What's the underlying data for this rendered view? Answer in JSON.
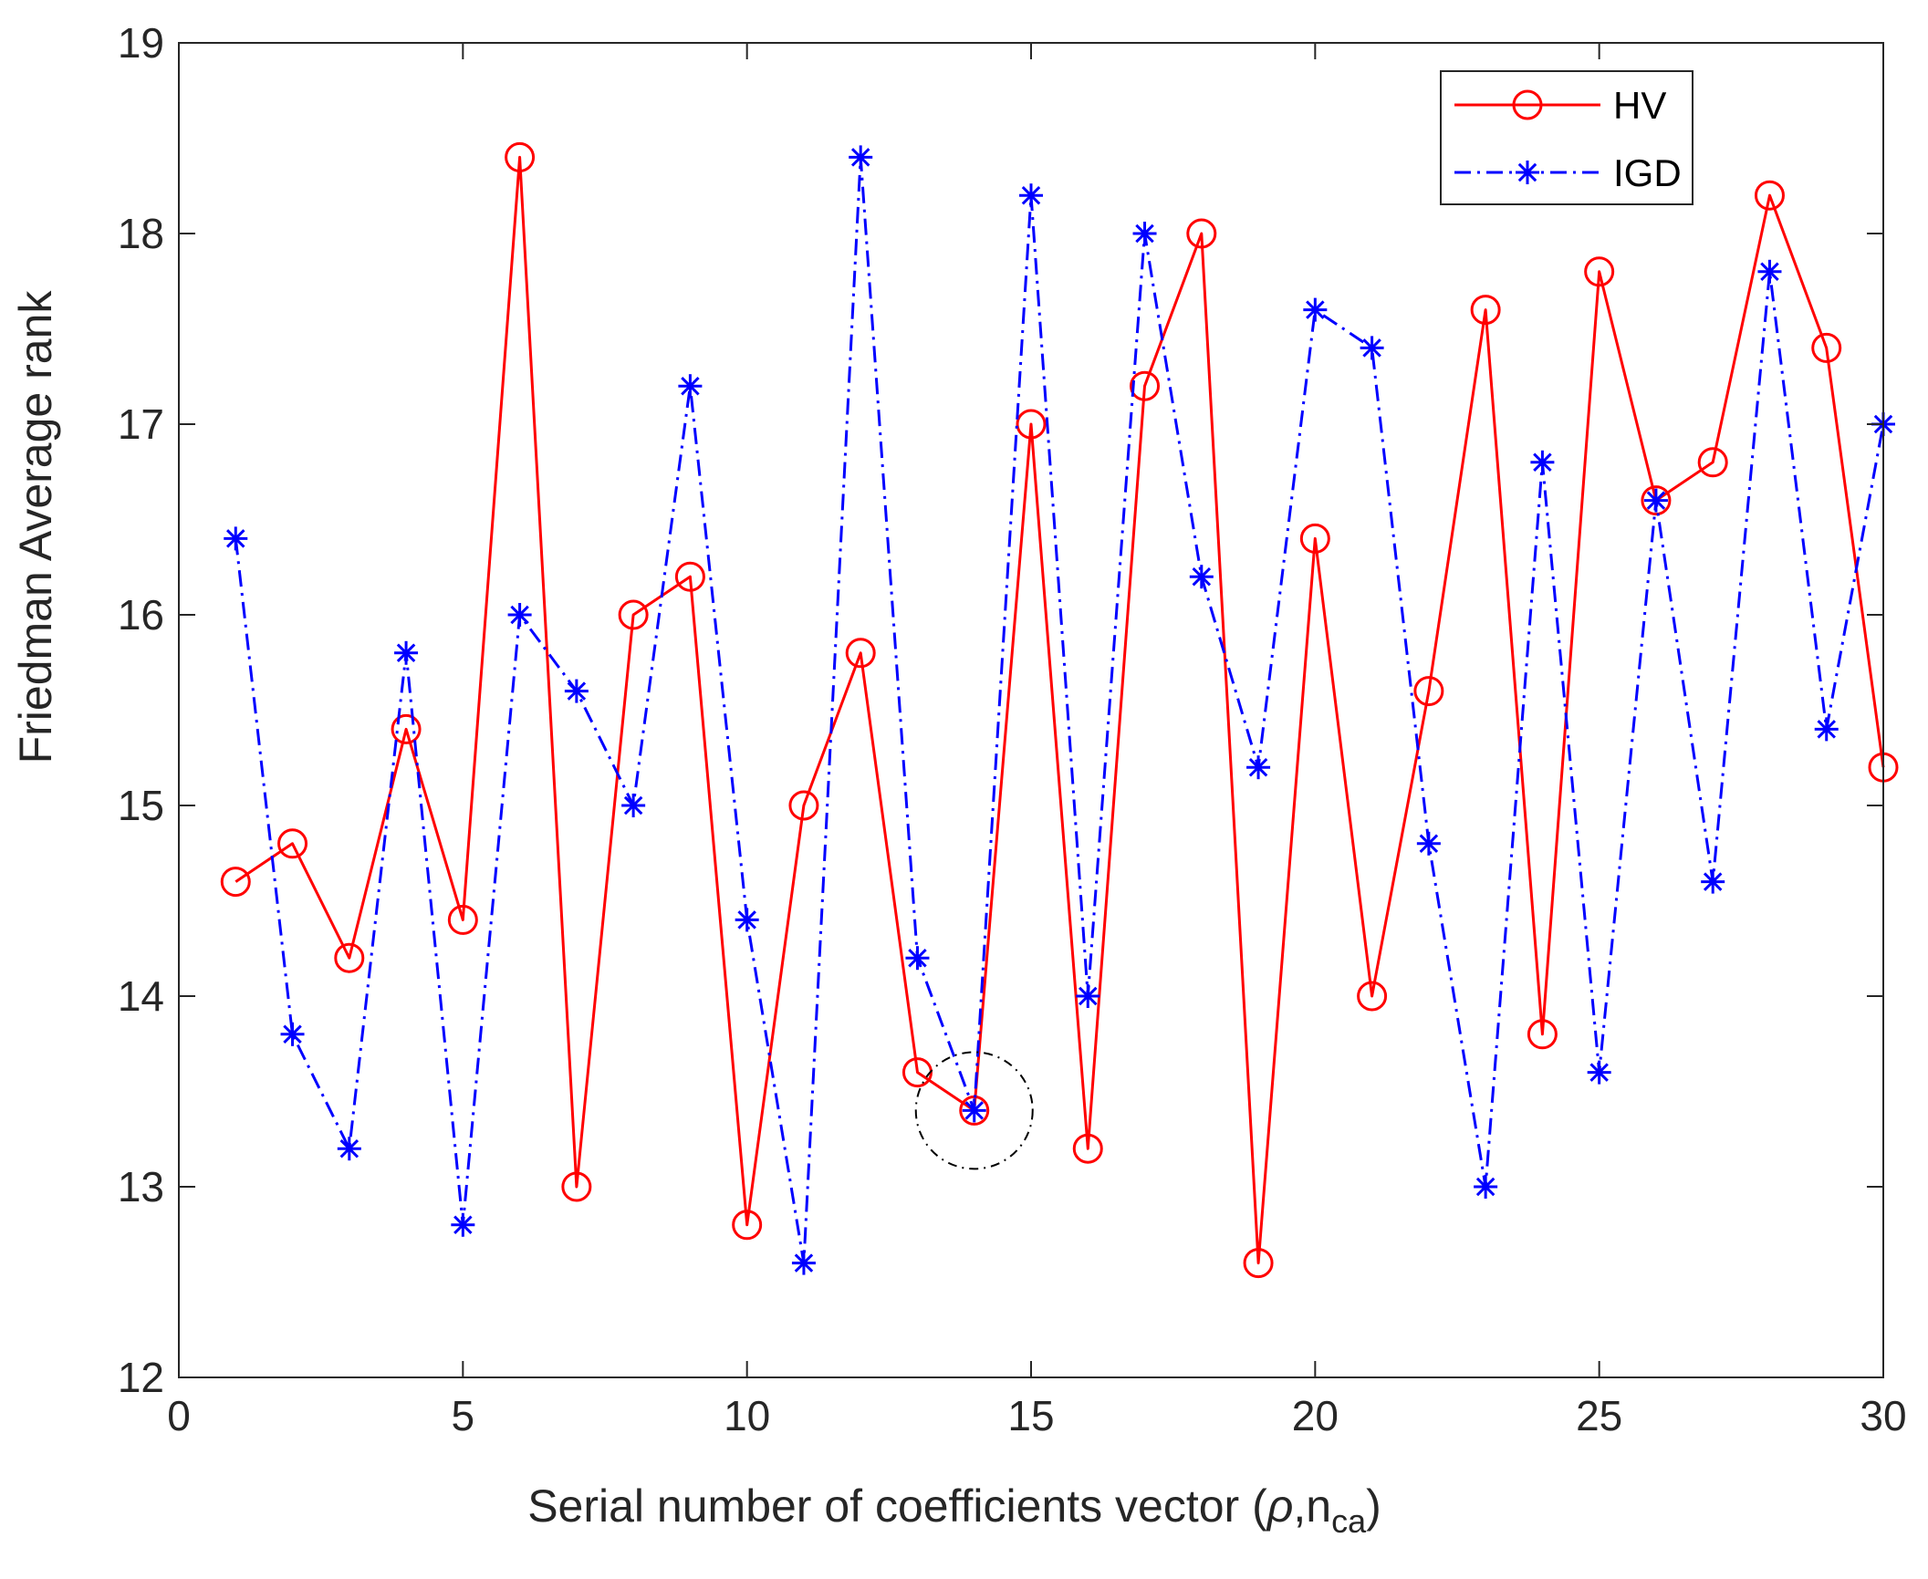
{
  "chart_data": {
    "type": "line",
    "title": "",
    "xlabel": "Serial number of coefficients vector (",
    "xlabel_rho": "ρ",
    "xlabel_n": ",n",
    "xlabel_sub": "ca",
    "xlabel_close": ")",
    "ylabel": "Friedman Average rank",
    "xlim": [
      0,
      30
    ],
    "ylim": [
      12,
      19
    ],
    "xticks": [
      0,
      5,
      10,
      15,
      20,
      25,
      30
    ],
    "yticks": [
      12,
      13,
      14,
      15,
      16,
      17,
      18,
      19
    ],
    "legend_position": "top-right",
    "series": [
      {
        "name": "HV",
        "color": "#ff0000",
        "line_style": "solid",
        "marker": "circle",
        "x": [
          1,
          2,
          3,
          4,
          5,
          6,
          7,
          8,
          9,
          10,
          11,
          12,
          13,
          14,
          15,
          16,
          17,
          18,
          19,
          20,
          21,
          22,
          23,
          24,
          25,
          26,
          27,
          28,
          29,
          30
        ],
        "values": [
          14.6,
          14.8,
          14.2,
          15.4,
          14.4,
          18.4,
          13.0,
          16.0,
          16.2,
          12.8,
          15.0,
          15.8,
          13.6,
          13.4,
          17.0,
          13.2,
          17.2,
          18.0,
          12.6,
          16.4,
          14.0,
          15.6,
          17.6,
          13.8,
          17.8,
          16.6,
          16.8,
          18.2,
          17.4,
          15.2
        ]
      },
      {
        "name": "IGD",
        "color": "#0000ff",
        "line_style": "dashdot",
        "marker": "asterisk",
        "x": [
          1,
          2,
          3,
          4,
          5,
          6,
          7,
          8,
          9,
          10,
          11,
          12,
          13,
          14,
          15,
          16,
          17,
          18,
          19,
          20,
          21,
          22,
          23,
          24,
          25,
          26,
          27,
          28,
          29,
          30
        ],
        "values": [
          16.4,
          13.8,
          13.2,
          15.8,
          12.8,
          16.0,
          15.6,
          15.0,
          17.2,
          14.4,
          12.6,
          18.4,
          14.2,
          13.4,
          18.2,
          14.0,
          18.0,
          16.2,
          15.2,
          17.6,
          17.4,
          14.8,
          13.0,
          16.8,
          13.6,
          16.6,
          14.6,
          17.8,
          15.4,
          17.0
        ]
      }
    ],
    "annotations": [
      {
        "type": "dashed-circle",
        "x": 14,
        "y": 13.4,
        "color": "#000000"
      }
    ]
  }
}
